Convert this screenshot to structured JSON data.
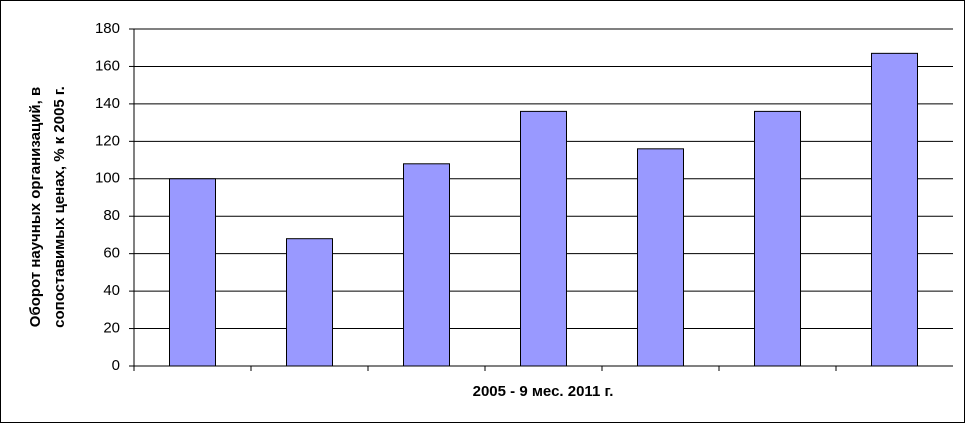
{
  "chart_data": {
    "type": "bar",
    "x_label": "2005 - 9 мес. 2011 г.",
    "y_label": [
      "Оборот научных организаций, в",
      "сопоставимых ценах, % к 2005 г."
    ],
    "categories": [
      null,
      null,
      null,
      null,
      null,
      null,
      null
    ],
    "values": [
      100,
      68,
      108,
      136,
      116,
      136,
      167
    ],
    "color": "#9999ff",
    "ylim": [
      0,
      180
    ],
    "yticks": [
      0,
      20,
      40,
      60,
      80,
      100,
      120,
      140,
      160,
      180
    ],
    "grid": true
  }
}
